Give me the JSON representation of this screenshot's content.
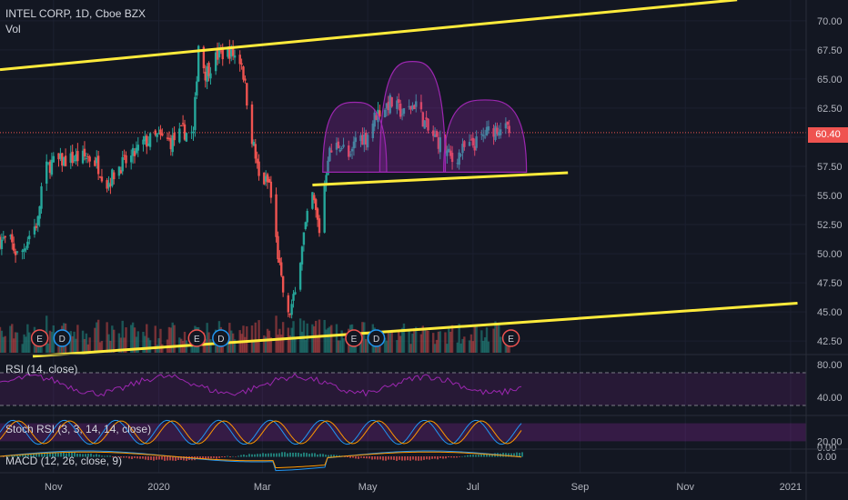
{
  "header": {
    "symbol_line": "INTEL CORP, 1D, Cboe BZX",
    "volume_label": "Vol"
  },
  "last_price": "60.40",
  "panes": {
    "rsi_label": "RSI (14, close)",
    "stoch_label": "Stoch RSI (3, 3, 14, 14, close)",
    "macd_label": "MACD (12, 26, close, 9)"
  },
  "event_markers": [
    {
      "label": "E",
      "kind": "earnings",
      "date": "2019-10-24"
    },
    {
      "label": "D",
      "kind": "dividend",
      "date": "2019-11-06"
    },
    {
      "label": "E",
      "kind": "earnings",
      "date": "2020-01-23"
    },
    {
      "label": "D",
      "kind": "dividend",
      "date": "2020-02-06"
    },
    {
      "label": "E",
      "kind": "earnings",
      "date": "2020-04-23"
    },
    {
      "label": "D",
      "kind": "dividend",
      "date": "2020-05-06"
    },
    {
      "label": "E",
      "kind": "earnings",
      "date": "2020-07-23"
    }
  ],
  "colors": {
    "background": "#131722",
    "up": "#26a69a",
    "down": "#ef5350",
    "trendline": "#ffeb3b",
    "pattern": "#9c27b0",
    "rsi": "#9c27b0",
    "axis_text": "#b2b5be"
  },
  "chart_data": [
    {
      "type": "candlestick",
      "title": "INTEL CORP, 1D, Cboe BZX",
      "ylim": [
        41.5,
        71
      ],
      "y_ticks": [
        "70.00",
        "67.50",
        "65.00",
        "62.50",
        "60.00",
        "57.50",
        "55.00",
        "52.50",
        "50.00",
        "47.50",
        "45.00",
        "42.50"
      ],
      "x_ticks": [
        "Nov",
        "2020",
        "Mar",
        "May",
        "Jul",
        "Sep",
        "Nov",
        "2021"
      ],
      "x_range": [
        "2019-10-01",
        "2021-01-10"
      ],
      "series": [
        {
          "name": "price",
          "points": [
            [
              "2019-10-01",
              51.2
            ],
            [
              "2019-10-07",
              51.0
            ],
            [
              "2019-10-12",
              49.6
            ],
            [
              "2019-10-18",
              51.6
            ],
            [
              "2019-10-23",
              52.8
            ],
            [
              "2019-10-26",
              57.0
            ],
            [
              "2019-10-31",
              57.8
            ],
            [
              "2019-11-07",
              58.0
            ],
            [
              "2019-11-14",
              58.2
            ],
            [
              "2019-11-21",
              58.3
            ],
            [
              "2019-11-26",
              57.8
            ],
            [
              "2019-12-02",
              56.0
            ],
            [
              "2019-12-09",
              57.5
            ],
            [
              "2019-12-16",
              58.2
            ],
            [
              "2019-12-23",
              59.5
            ],
            [
              "2019-12-31",
              60.0
            ],
            [
              "2020-01-08",
              59.6
            ],
            [
              "2020-01-15",
              60.5
            ],
            [
              "2020-01-21",
              60.2
            ],
            [
              "2020-01-24",
              68.0
            ],
            [
              "2020-01-28",
              65.5
            ],
            [
              "2020-02-04",
              67.0
            ],
            [
              "2020-02-11",
              67.4
            ],
            [
              "2020-02-18",
              66.5
            ],
            [
              "2020-02-24",
              60.0
            ],
            [
              "2020-02-28",
              56.5
            ],
            [
              "2020-03-05",
              56.0
            ],
            [
              "2020-03-12",
              47.5
            ],
            [
              "2020-03-16",
              44.5
            ],
            [
              "2020-03-20",
              46.5
            ],
            [
              "2020-03-24",
              51.0
            ],
            [
              "2020-03-30",
              55.0
            ],
            [
              "2020-04-03",
              52.0
            ],
            [
              "2020-04-08",
              58.5
            ],
            [
              "2020-04-15",
              59.5
            ],
            [
              "2020-04-21",
              58.0
            ],
            [
              "2020-04-24",
              60.0
            ],
            [
              "2020-04-30",
              60.0
            ],
            [
              "2020-05-06",
              62.0
            ],
            [
              "2020-05-14",
              63.0
            ],
            [
              "2020-05-22",
              62.0
            ],
            [
              "2020-05-29",
              63.0
            ],
            [
              "2020-06-05",
              60.5
            ],
            [
              "2020-06-12",
              59.5
            ],
            [
              "2020-06-19",
              58.0
            ],
            [
              "2020-06-26",
              59.0
            ],
            [
              "2020-07-03",
              59.5
            ],
            [
              "2020-07-10",
              60.5
            ],
            [
              "2020-07-17",
              61.0
            ],
            [
              "2020-07-22",
              60.4
            ]
          ]
        },
        {
          "name": "volume",
          "scale": "relative"
        }
      ],
      "annotations": [
        {
          "type": "trendline",
          "from": [
            "2019-10-01",
            65.8
          ],
          "to": [
            "2020-12-01",
            71.8
          ]
        },
        {
          "type": "trendline",
          "from": [
            "2020-03-30",
            55.9
          ],
          "to": [
            "2020-08-25",
            56.95
          ]
        },
        {
          "type": "trendline",
          "from": [
            "2019-10-20",
            41.2
          ],
          "to": [
            "2021-01-05",
            45.75
          ]
        },
        {
          "type": "arc",
          "from": [
            "2020-04-05",
            57.0
          ],
          "to": [
            "2020-05-12",
            57.0
          ],
          "peak": 63.0
        },
        {
          "type": "arc",
          "from": [
            "2020-05-08",
            57.0
          ],
          "to": [
            "2020-06-15",
            57.0
          ],
          "peak": 66.5
        },
        {
          "type": "arc",
          "from": [
            "2020-06-14",
            57.0
          ],
          "to": [
            "2020-08-01",
            57.0
          ],
          "peak": 63.2
        }
      ],
      "hline": {
        "value": 60.4,
        "style": "dotted"
      }
    },
    {
      "type": "line",
      "title": "RSI (14, close)",
      "y_ticks": [
        "80.00",
        "40.00"
      ],
      "bands": [
        70,
        30
      ],
      "ylim": [
        20,
        90
      ]
    },
    {
      "type": "line",
      "title": "Stoch RSI (3, 3, 14, 14, close)",
      "y_ticks": [
        "20.00",
        "0.00"
      ],
      "bands": [
        80,
        20
      ],
      "ylim": [
        0,
        100
      ]
    },
    {
      "type": "histogram",
      "title": "MACD (12, 26, close, 9)",
      "y_ticks": [
        "0.00"
      ]
    }
  ]
}
